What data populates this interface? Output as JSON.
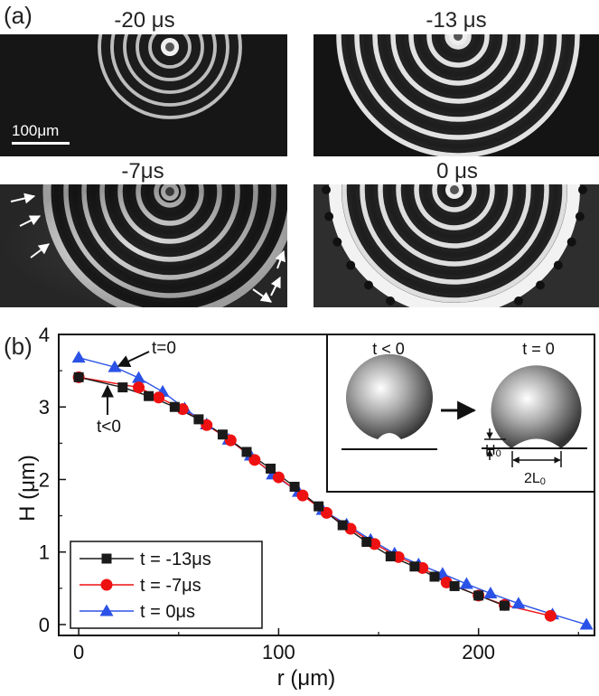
{
  "panel_a": {
    "label": "(a)",
    "images": [
      {
        "time_label": "-20 μs"
      },
      {
        "time_label": "-13 μs"
      },
      {
        "time_label": "-7μs"
      },
      {
        "time_label": "0 μs"
      }
    ],
    "scale_bar": "100μm"
  },
  "panel_b": {
    "label": "(b)",
    "annotations": {
      "t0": "t=0",
      "tneg": "t<0"
    },
    "inset": {
      "left_title": "t < 0",
      "right_title": "t = 0",
      "h0": "H",
      "h0_sub": "0",
      "l0": "2L",
      "l0_sub": "0"
    }
  },
  "colors": {
    "black": "#1a1a1a",
    "red": "#ee1111",
    "blue": "#2b52e6"
  },
  "chart_data": {
    "type": "line",
    "xlabel": "r (μm)",
    "ylabel": "H (μm)",
    "xlim": [
      -10,
      258
    ],
    "ylim": [
      -0.15,
      4.0
    ],
    "xticks": [
      0,
      100,
      200
    ],
    "yticks": [
      0,
      1,
      2,
      3,
      4
    ],
    "legend_position": "bottom-left",
    "series": [
      {
        "name": "t = -13μs",
        "color": "#1a1a1a",
        "marker": "square",
        "x": [
          0,
          22,
          35,
          48,
          60,
          72,
          84,
          96,
          108,
          120,
          132,
          144,
          156,
          168,
          178,
          188,
          200,
          213
        ],
        "y": [
          3.41,
          3.27,
          3.15,
          3.0,
          2.83,
          2.62,
          2.38,
          2.15,
          1.9,
          1.63,
          1.37,
          1.14,
          0.94,
          0.8,
          0.66,
          0.53,
          0.4,
          0.26
        ]
      },
      {
        "name": "t = -7μs",
        "color": "#ee1111",
        "marker": "circle",
        "x": [
          0,
          30,
          40,
          52,
          64,
          76,
          88,
          100,
          112,
          124,
          136,
          148,
          160,
          172,
          184,
          200,
          213,
          236
        ],
        "y": [
          3.41,
          3.27,
          3.13,
          2.97,
          2.75,
          2.54,
          2.27,
          2.03,
          1.78,
          1.54,
          1.32,
          1.11,
          0.93,
          0.78,
          0.58,
          0.4,
          0.27,
          0.12
        ]
      },
      {
        "name": "t = 0μs",
        "color": "#2b52e6",
        "marker": "triangle",
        "x": [
          0,
          18,
          30,
          42,
          53,
          64,
          75,
          86,
          97,
          110,
          122,
          134,
          146,
          158,
          170,
          182,
          194,
          206,
          220,
          237,
          254
        ],
        "y": [
          3.68,
          3.55,
          3.4,
          3.21,
          2.98,
          2.76,
          2.55,
          2.33,
          2.07,
          1.83,
          1.58,
          1.38,
          1.17,
          0.98,
          0.83,
          0.7,
          0.56,
          0.43,
          0.29,
          0.14,
          0.0
        ]
      }
    ]
  }
}
